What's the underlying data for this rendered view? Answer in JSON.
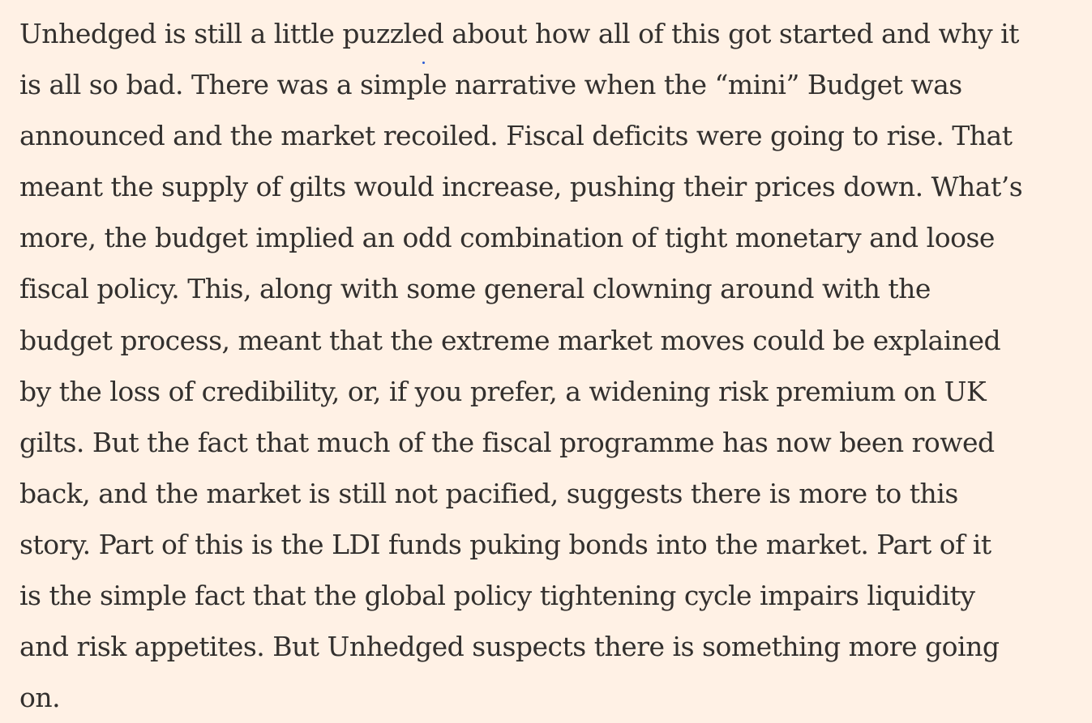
{
  "article": {
    "paragraph_lines": [
      "Unhedged is still a little puzzled about how all of this got started and why it",
      "is all so bad. There was a simple narrative when the “mini” Budget was",
      "announced and the market recoiled. Fiscal deficits were going to rise. That",
      "meant the supply of gilts would increase, pushing their prices down. What’s",
      "more, the budget implied an odd combination of tight monetary and loose",
      "fiscal policy. This, along with some general clowning around with the",
      "budget process, meant that the extreme market moves could be explained",
      "by the loss of credibility, or, if you prefer, a widening risk premium on UK",
      "gilts. But the fact that much of the fiscal programme has now been rowed",
      "back, and the market is still not pacified, suggests there is more to this",
      "story. Part of this is the LDI funds puking bonds into the market. Part of it",
      "is the simple fact that the global policy tightening cycle impairs liquidity",
      "and risk appetites. But Unhedged suspects there is something more going",
      "on."
    ]
  },
  "colors": {
    "background": "#fff1e5",
    "text": "#33302e",
    "stray_dot": "#2b5cd6"
  }
}
